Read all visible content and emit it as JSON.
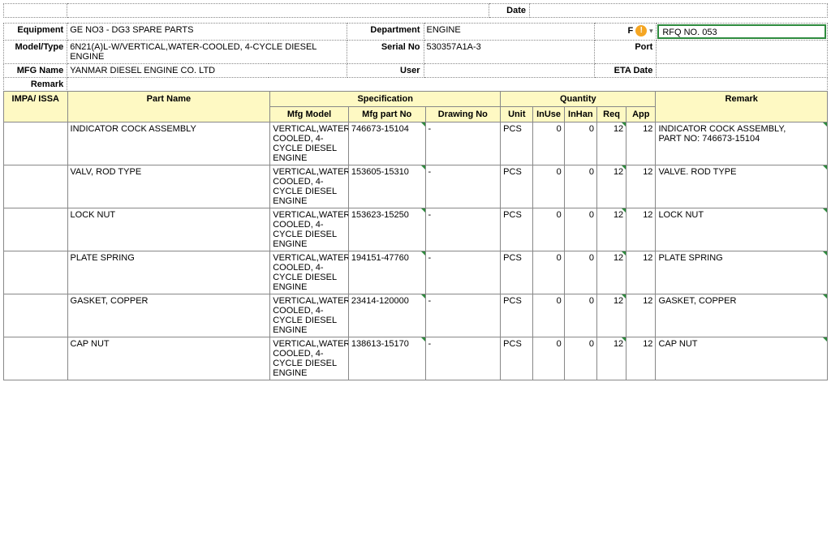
{
  "top": {
    "date_label": "Date"
  },
  "header": {
    "equipment_label": "Equipment",
    "equipment": "GE NO3 - DG3 SPARE PARTS",
    "department_label": "Department",
    "department": "ENGINE",
    "f_label": "F",
    "rfq": "RFQ NO. 053",
    "model_label": "Model/Type",
    "model": "6N21(A)L-W/VERTICAL,WATER-COOLED, 4-CYCLE DIESEL ENGINE",
    "serial_label": "Serial No",
    "serial": "530357A1A-3",
    "port_label": "Port",
    "mfg_label": "MFG Name",
    "mfg": "YANMAR DIESEL ENGINE CO. LTD",
    "user_label": "User",
    "eta_label": "ETA Date",
    "remark_label": "Remark"
  },
  "columns": {
    "spec_group": "Specification",
    "qty_group": "Quantity",
    "impa": "IMPA/ ISSA",
    "part": "Part Name",
    "mfgmodel": "Mfg Model",
    "mfgpart": "Mfg part No",
    "drawing": "Drawing No",
    "unit": "Unit",
    "inuse": "InUse",
    "inhan": "InHan",
    "req": "Req",
    "app": "App",
    "remark": "Remark"
  },
  "mfg_model_text": "VERTICAL,WATER-COOLED, 4-CYCLE DIESEL ENGINE",
  "rows": [
    {
      "part": "INDICATOR COCK ASSEMBLY",
      "mfgpart": "746673-15104",
      "drawing": "-",
      "unit": "PCS",
      "inuse": 0,
      "inhan": 0,
      "req": 12,
      "app": 12,
      "remark": "INDICATOR COCK ASSEMBLY,\nPART NO: 746673-15104"
    },
    {
      "part": "VALV, ROD TYPE",
      "mfgpart": "153605-15310",
      "drawing": "-",
      "unit": "PCS",
      "inuse": 0,
      "inhan": 0,
      "req": 12,
      "app": 12,
      "remark": "VALVE. ROD TYPE"
    },
    {
      "part": "LOCK NUT",
      "mfgpart": "153623-15250",
      "drawing": "-",
      "unit": "PCS",
      "inuse": 0,
      "inhan": 0,
      "req": 12,
      "app": 12,
      "remark": "LOCK NUT"
    },
    {
      "part": "PLATE SPRING",
      "mfgpart": "194151-47760",
      "drawing": "-",
      "unit": "PCS",
      "inuse": 0,
      "inhan": 0,
      "req": 12,
      "app": 12,
      "remark": "PLATE SPRING"
    },
    {
      "part": "GASKET, COPPER",
      "mfgpart": "23414-120000",
      "drawing": "-",
      "unit": "PCS",
      "inuse": 0,
      "inhan": 0,
      "req": 12,
      "app": 12,
      "remark": "GASKET, COPPER"
    },
    {
      "part": "CAP NUT",
      "mfgpart": "138613-15170",
      "drawing": "-",
      "unit": "PCS",
      "inuse": 0,
      "inhan": 0,
      "req": 12,
      "app": 12,
      "remark": "CAP NUT"
    }
  ]
}
